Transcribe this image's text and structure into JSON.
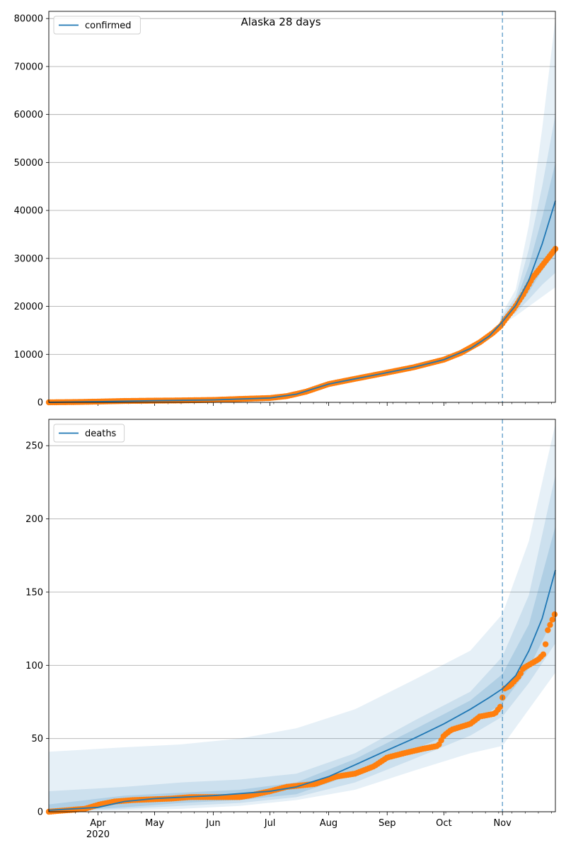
{
  "title": "Alaska 28 days",
  "colors": {
    "model": "#1f77b4",
    "observed": "#ff7f0e",
    "band": "#1f77b4",
    "grid": "#b0b0b0",
    "forecast_line": "#1f77b4"
  },
  "chart_data": [
    {
      "type": "line",
      "title": "Alaska 28 days",
      "legend": [
        "confirmed"
      ],
      "legend_position": "top-left",
      "grid": "horizontal",
      "xlim": [
        "2020-03-06",
        "2020-11-29"
      ],
      "ylim": [
        0,
        81500
      ],
      "yticks": [
        0,
        10000,
        20000,
        30000,
        40000,
        50000,
        60000,
        70000,
        80000
      ],
      "forecast_start": "2020-11-01",
      "series": [
        {
          "name": "confirmed",
          "kind": "model-median",
          "points": [
            [
              "2020-03-06",
              0
            ],
            [
              "2020-04-01",
              150
            ],
            [
              "2020-05-01",
              350
            ],
            [
              "2020-06-01",
              500
            ],
            [
              "2020-07-01",
              900
            ],
            [
              "2020-07-15",
              1700
            ],
            [
              "2020-08-01",
              3800
            ],
            [
              "2020-08-15",
              4900
            ],
            [
              "2020-09-01",
              6200
            ],
            [
              "2020-09-15",
              7300
            ],
            [
              "2020-10-01",
              8900
            ],
            [
              "2020-10-15",
              11200
            ],
            [
              "2020-10-25",
              13800
            ],
            [
              "2020-11-01",
              16800
            ],
            [
              "2020-11-08",
              20200
            ],
            [
              "2020-11-15",
              25500
            ],
            [
              "2020-11-22",
              33000
            ],
            [
              "2020-11-29",
              42000
            ]
          ]
        },
        {
          "name": "",
          "kind": "observed",
          "points": [
            [
              "2020-03-06",
              0
            ],
            [
              "2020-03-20",
              60
            ],
            [
              "2020-04-01",
              150
            ],
            [
              "2020-04-15",
              280
            ],
            [
              "2020-05-01",
              350
            ],
            [
              "2020-05-15",
              400
            ],
            [
              "2020-06-01",
              500
            ],
            [
              "2020-06-15",
              700
            ],
            [
              "2020-07-01",
              900
            ],
            [
              "2020-07-10",
              1300
            ],
            [
              "2020-07-20",
              2200
            ],
            [
              "2020-08-01",
              3800
            ],
            [
              "2020-08-15",
              4900
            ],
            [
              "2020-09-01",
              6200
            ],
            [
              "2020-09-15",
              7300
            ],
            [
              "2020-10-01",
              8900
            ],
            [
              "2020-10-10",
              10300
            ],
            [
              "2020-10-20",
              12500
            ],
            [
              "2020-10-27",
              14500
            ],
            [
              "2020-10-31",
              15900
            ],
            [
              "2020-11-03",
              17500
            ],
            [
              "2020-11-07",
              19500
            ],
            [
              "2020-11-12",
              22500
            ],
            [
              "2020-11-17",
              26000
            ],
            [
              "2020-11-22",
              28500
            ],
            [
              "2020-11-26",
              30500
            ],
            [
              "2020-11-29",
              32000
            ]
          ]
        }
      ],
      "bands": [
        {
          "level": "outer",
          "points": [
            [
              "2020-10-31",
              16000,
              18000
            ],
            [
              "2020-11-08",
              18000,
              23500
            ],
            [
              "2020-11-15",
              20000,
              37000
            ],
            [
              "2020-11-22",
              22000,
              57000
            ],
            [
              "2020-11-29",
              24000,
              80000
            ]
          ]
        },
        {
          "level": "middle",
          "points": [
            [
              "2020-10-31",
              16300,
              17400
            ],
            [
              "2020-11-08",
              18700,
              22000
            ],
            [
              "2020-11-15",
              21500,
              32000
            ],
            [
              "2020-11-22",
              24500,
              45000
            ],
            [
              "2020-11-29",
              27000,
              60000
            ]
          ]
        },
        {
          "level": "inner",
          "points": [
            [
              "2020-10-31",
              16500,
              17100
            ],
            [
              "2020-11-08",
              19300,
              21000
            ],
            [
              "2020-11-15",
              23000,
              28500
            ],
            [
              "2020-11-22",
              27500,
              38500
            ],
            [
              "2020-11-29",
              31000,
              50000
            ]
          ]
        }
      ]
    },
    {
      "type": "line",
      "legend": [
        "deaths"
      ],
      "legend_position": "top-left",
      "grid": "horizontal",
      "xlim": [
        "2020-03-06",
        "2020-11-29"
      ],
      "ylim": [
        0,
        268
      ],
      "yticks": [
        0,
        50,
        100,
        150,
        200,
        250
      ],
      "forecast_start": "2020-11-01",
      "xticks": [
        "Apr",
        "May",
        "Jun",
        "Jul",
        "Aug",
        "Sep",
        "Oct",
        "Nov"
      ],
      "xtick_dates": [
        "2020-04-01",
        "2020-05-01",
        "2020-06-01",
        "2020-07-01",
        "2020-08-01",
        "2020-09-01",
        "2020-10-01",
        "2020-11-01"
      ],
      "x_year_label": "2020",
      "series": [
        {
          "name": "deaths",
          "kind": "model-median",
          "points": [
            [
              "2020-03-06",
              1
            ],
            [
              "2020-04-01",
              3
            ],
            [
              "2020-04-15",
              7
            ],
            [
              "2020-05-01",
              9
            ],
            [
              "2020-06-01",
              11
            ],
            [
              "2020-07-01",
              14
            ],
            [
              "2020-07-15",
              17
            ],
            [
              "2020-08-01",
              24
            ],
            [
              "2020-08-15",
              32
            ],
            [
              "2020-09-01",
              42
            ],
            [
              "2020-09-15",
              50
            ],
            [
              "2020-10-01",
              60
            ],
            [
              "2020-10-15",
              70
            ],
            [
              "2020-10-25",
              78
            ],
            [
              "2020-11-01",
              84
            ],
            [
              "2020-11-08",
              93
            ],
            [
              "2020-11-15",
              110
            ],
            [
              "2020-11-22",
              132
            ],
            [
              "2020-11-29",
              165
            ]
          ]
        },
        {
          "name": "",
          "kind": "observed",
          "points": [
            [
              "2020-03-06",
              0
            ],
            [
              "2020-03-25",
              2
            ],
            [
              "2020-04-02",
              5
            ],
            [
              "2020-04-10",
              7
            ],
            [
              "2020-04-20",
              8
            ],
            [
              "2020-05-10",
              9
            ],
            [
              "2020-05-20",
              10
            ],
            [
              "2020-06-15",
              10
            ],
            [
              "2020-06-20",
              11
            ],
            [
              "2020-07-01",
              14
            ],
            [
              "2020-07-10",
              17
            ],
            [
              "2020-07-25",
              19
            ],
            [
              "2020-08-05",
              24
            ],
            [
              "2020-08-15",
              26
            ],
            [
              "2020-08-25",
              31
            ],
            [
              "2020-09-01",
              37
            ],
            [
              "2020-09-10",
              40
            ],
            [
              "2020-09-20",
              43
            ],
            [
              "2020-09-28",
              45
            ],
            [
              "2020-10-01",
              52
            ],
            [
              "2020-10-05",
              56
            ],
            [
              "2020-10-15",
              60
            ],
            [
              "2020-10-20",
              65
            ],
            [
              "2020-10-28",
              67
            ],
            [
              "2020-10-31",
              72
            ],
            [
              "2020-11-02",
              84
            ],
            [
              "2020-11-05",
              86
            ],
            [
              "2020-11-10",
              93
            ],
            [
              "2020-11-12",
              98
            ],
            [
              "2020-11-16",
              101
            ],
            [
              "2020-11-20",
              104
            ],
            [
              "2020-11-23",
              108
            ],
            [
              "2020-11-25",
              124
            ],
            [
              "2020-11-27",
              130
            ],
            [
              "2020-11-29",
              136
            ]
          ]
        }
      ],
      "bands": [
        {
          "level": "outer",
          "points": [
            [
              "2020-03-06",
              0,
              41
            ],
            [
              "2020-04-15",
              1,
              44
            ],
            [
              "2020-05-15",
              2,
              46
            ],
            [
              "2020-06-15",
              4,
              50
            ],
            [
              "2020-07-15",
              8,
              57
            ],
            [
              "2020-08-15",
              15,
              70
            ],
            [
              "2020-09-15",
              28,
              90
            ],
            [
              "2020-10-15",
              40,
              110
            ],
            [
              "2020-11-01",
              45,
              135
            ],
            [
              "2020-11-15",
              70,
              185
            ],
            [
              "2020-11-29",
              95,
              265
            ]
          ]
        },
        {
          "level": "middle",
          "points": [
            [
              "2020-03-06",
              0,
              14
            ],
            [
              "2020-04-15",
              2,
              17
            ],
            [
              "2020-05-15",
              4,
              20
            ],
            [
              "2020-06-15",
              6,
              22
            ],
            [
              "2020-07-15",
              10,
              26
            ],
            [
              "2020-08-15",
              20,
              40
            ],
            [
              "2020-09-15",
              36,
              62
            ],
            [
              "2020-10-15",
              52,
              82
            ],
            [
              "2020-11-01",
              65,
              106
            ],
            [
              "2020-11-15",
              88,
              148
            ],
            [
              "2020-11-29",
              115,
              230
            ]
          ]
        },
        {
          "level": "inner",
          "points": [
            [
              "2020-03-06",
              0,
              5
            ],
            [
              "2020-04-15",
              3,
              11
            ],
            [
              "2020-05-15",
              6,
              13
            ],
            [
              "2020-06-15",
              8,
              15
            ],
            [
              "2020-07-15",
              12,
              20
            ],
            [
              "2020-08-15",
              26,
              36
            ],
            [
              "2020-09-15",
              42,
              56
            ],
            [
              "2020-10-15",
              60,
              76
            ],
            [
              "2020-11-01",
              74,
              94
            ],
            [
              "2020-11-15",
              98,
              128
            ],
            [
              "2020-11-29",
              135,
              195
            ]
          ]
        }
      ]
    }
  ]
}
